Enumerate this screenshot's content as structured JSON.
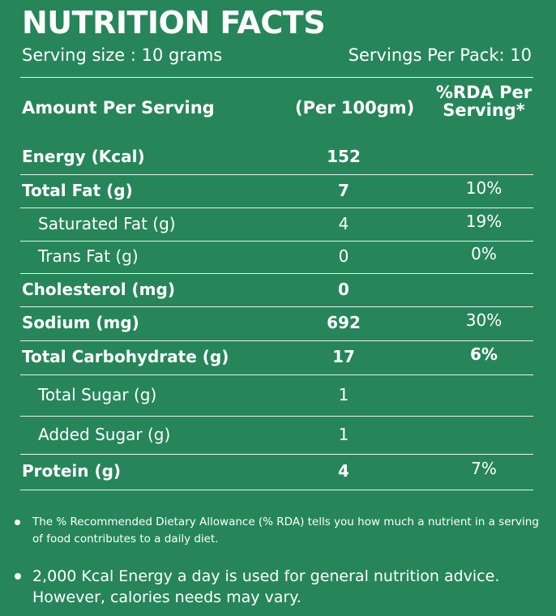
{
  "header": {
    "title": "NUTRITION FACTS",
    "serving_size": "Serving size : 10 grams",
    "servings_per_pack": "Servings Per Pack: 10"
  },
  "table": {
    "columns": [
      "Amount Per Serving",
      "(Per 100gm)",
      "%RDA Per Serving*"
    ],
    "rows": [
      {
        "name": "Energy (Kcal)",
        "per_100g": 152
      },
      {
        "name": "Total Fat (g)",
        "per_100g": 7,
        "rda": "10%"
      },
      {
        "name": "Saturated Fat (g)",
        "per_100g": 4,
        "rda": "19%"
      },
      {
        "name": "Trans Fat (g)",
        "per_100g": 0,
        "rda": "0%"
      },
      {
        "name": "Cholesterol (mg)",
        "per_100g": 0
      },
      {
        "name": "Sodium  (mg)",
        "per_100g": 692,
        "rda": "30%"
      },
      {
        "name": "Total Carbohydrate (g)",
        "per_100g": 17,
        "rda": "6%"
      },
      {
        "name": "Total Sugar (g)",
        "per_100g": 1
      },
      {
        "name": "Added Sugar (g)",
        "per_100g": 1
      },
      {
        "name": "Protein (g)",
        "per_100g": 4,
        "rda": "7%"
      }
    ]
  },
  "notes": [
    "The % Recommended Dietary Allowance (% RDA) tells you how much a nutrient in a serving of food contributes to a daily diet.",
    "2,000 Kcal Energy a day is used for general nutrition advice. However, calories needs may vary."
  ]
}
